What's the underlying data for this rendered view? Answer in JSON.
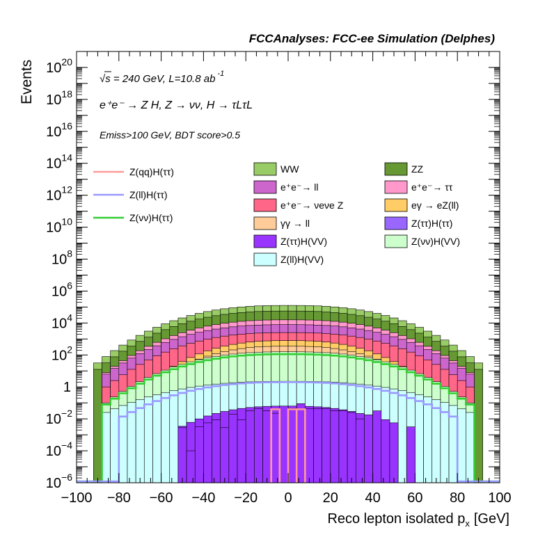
{
  "header": "FCCAnalyses: FCC-ee Simulation (Delphes)",
  "annotations": {
    "energy": "√s = 240 GeV, L=10.8 ab",
    "energy_sup": "-1",
    "process": "e⁺e⁻ → Z H, Z → νν, H → τLτL",
    "selection": "Emiss>100 GeV, BDT score>0.5"
  },
  "colors": {
    "WW": "#99cc66",
    "ZZ": "#669933",
    "ee_ll": "#cc66cc",
    "ee_tautau": "#ff99cc",
    "ee_nunuZ": "#ff6688",
    "egamma": "#ffcc66",
    "gammagamma": "#ffcc99",
    "Ztautau_Htautau": "#9966ff",
    "Ztautau_HVV": "#9933ff",
    "Znunu_HVV": "#ccffcc",
    "Zll_HVV": "#ccffff",
    "sig_qq": "#ff9999",
    "sig_ll": "#9999ff",
    "sig_nunu": "#33cc33"
  },
  "chart_data": {
    "type": "histogram",
    "title": "",
    "xlabel": "Reco lepton isolated p",
    "xlabel_sub": "x",
    "xlabel_unit": "[GeV]",
    "ylabel": "Events",
    "xlim": [
      -100,
      100
    ],
    "ylim": [
      1e-06,
      1e+21
    ],
    "log_y": true,
    "bin_width": 4,
    "x_ticks": [
      "−100",
      "−80",
      "−60",
      "−40",
      "−20",
      "0",
      "20",
      "40",
      "60",
      "80",
      "100"
    ],
    "y_ticks": [
      {
        "base": "10",
        "exp": "20"
      },
      {
        "base": "10",
        "exp": "18"
      },
      {
        "base": "10",
        "exp": "16"
      },
      {
        "base": "10",
        "exp": "14"
      },
      {
        "base": "10",
        "exp": "12"
      },
      {
        "base": "10",
        "exp": "10"
      },
      {
        "base": "10",
        "exp": "8"
      },
      {
        "base": "10",
        "exp": "6"
      },
      {
        "base": "10",
        "exp": "4"
      },
      {
        "base": "10",
        "exp": "2"
      },
      {
        "base": "1",
        "exp": ""
      },
      {
        "base": "10",
        "exp": "−2"
      },
      {
        "base": "10",
        "exp": "−4"
      },
      {
        "base": "10",
        "exp": "−6"
      }
    ],
    "stack_note": "values are cumulative stacked totals (log10 of events), drawn back-to-front",
    "stack": [
      {
        "name": "WW",
        "color_key": "WW",
        "lo": -90,
        "hi": 90,
        "peak": 5.1,
        "edge": 1.5
      },
      {
        "name": "ZZ",
        "color_key": "ZZ",
        "lo": -90,
        "hi": 90,
        "peak": 4.75,
        "edge": 1.1
      },
      {
        "name": "e⁺e⁻→ ττ",
        "color_key": "ee_tautau",
        "lo": -86,
        "hi": 86,
        "peak": 4.2,
        "edge": 0.9
      },
      {
        "name": "e⁺e⁻→ ll",
        "color_key": "ee_ll",
        "lo": -86,
        "hi": 86,
        "peak": 3.9,
        "edge": 0.8
      },
      {
        "name": "e⁺e⁻→ νeνe Z",
        "color_key": "ee_nunuZ",
        "lo": -86,
        "hi": 86,
        "peak": 3.4,
        "edge": 0.0
      },
      {
        "name": "eγ → eZ(ll)",
        "color_key": "egamma",
        "lo": -60,
        "hi": 62,
        "peak": 2.9,
        "edge": 0.6
      },
      {
        "name": "γγ → ll",
        "color_key": "gammagamma",
        "lo": -60,
        "hi": 60,
        "peak": 2.55,
        "edge": 0.5
      },
      {
        "name": "Z(νν)H(VV)",
        "color_key": "Znunu_HVV",
        "lo": -86,
        "hi": 86,
        "peak": 2.2,
        "edge": -1.0
      },
      {
        "name": "Z(ll)H(VV)",
        "color_key": "Zll_HVV",
        "lo": -86,
        "hi": 86,
        "peak": 0.35,
        "edge": -1.6
      },
      {
        "name": "Z(ττ)H(VV)",
        "color_key": "Ztautau_HVV",
        "lo": -52,
        "hi": 52,
        "peak": -1.2,
        "edge": -2.6
      }
    ],
    "purple_bins": [
      {
        "x": -52,
        "v": -2.55
      },
      {
        "x": -48,
        "v": -4.0
      },
      {
        "x": -44,
        "v": -2.5
      },
      {
        "x": -40,
        "v": -2.25
      },
      {
        "x": -36,
        "v": -2.05
      },
      {
        "x": -32,
        "v": -2.55
      },
      {
        "x": -28,
        "v": -1.7
      },
      {
        "x": -24,
        "v": -2.05
      },
      {
        "x": -20,
        "v": -1.5
      },
      {
        "x": -16,
        "v": -1.35
      },
      {
        "x": -12,
        "v": -1.5
      },
      {
        "x": -8,
        "v": -1.65
      },
      {
        "x": -4,
        "v": -1.2
      },
      {
        "x": 0,
        "v": -1.35
      },
      {
        "x": 4,
        "v": -1.05
      },
      {
        "x": 8,
        "v": -1.35
      },
      {
        "x": 12,
        "v": -1.35
      },
      {
        "x": 16,
        "v": -1.35
      },
      {
        "x": 20,
        "v": -1.5
      },
      {
        "x": 24,
        "v": -1.5
      },
      {
        "x": 28,
        "v": -1.6
      },
      {
        "x": 32,
        "v": -2.0
      },
      {
        "x": 36,
        "v": -1.75
      },
      {
        "x": 40,
        "v": -1.5
      },
      {
        "x": 44,
        "v": -2.05
      },
      {
        "x": 48,
        "v": -2.25
      },
      {
        "x": 56,
        "v": -2.5
      }
    ],
    "lines": [
      {
        "name": "Z(νν)H(ττ)",
        "color_key": "sig_nunu",
        "lo": -88,
        "hi": 88,
        "peak": 2.05,
        "edge": -1.3
      },
      {
        "name": "Z(ll)H(ττ)",
        "color_key": "sig_ll",
        "lo": -80,
        "hi": 80,
        "peak": 0.3,
        "edge": -2.0
      },
      {
        "name": "Z(qq)H(ττ)",
        "color_key": "sig_qq",
        "spikes": [
          [
            -8,
            -4
          ],
          [
            0,
            4
          ],
          [
            4,
            8
          ]
        ],
        "level": -1.4
      }
    ],
    "legend_left": [
      {
        "label": "Z(qq)H(ττ)",
        "color_key": "sig_qq"
      },
      {
        "label": "Z(ll)H(ττ)",
        "color_key": "sig_ll"
      },
      {
        "label": "Z(νν)H(ττ)",
        "color_key": "sig_nunu"
      }
    ],
    "legend_right": [
      {
        "label": "WW",
        "color_key": "WW"
      },
      {
        "label": "ZZ",
        "color_key": "ZZ"
      },
      {
        "label": "e⁺e⁻→ ll",
        "color_key": "ee_ll"
      },
      {
        "label": "e⁺e⁻→ ττ",
        "color_key": "ee_tautau"
      },
      {
        "label": "e⁺e⁻→ νeνe Z",
        "color_key": "ee_nunuZ"
      },
      {
        "label": "eγ → eZ(ll)",
        "color_key": "egamma"
      },
      {
        "label": "γγ → ll",
        "color_key": "gammagamma"
      },
      {
        "label": "Z(ττ)H(ττ)",
        "color_key": "Ztautau_Htautau"
      },
      {
        "label": "Z(ττ)H(VV)",
        "color_key": "Ztautau_HVV"
      },
      {
        "label": "Z(νν)H(VV)",
        "color_key": "Znunu_HVV"
      },
      {
        "label": "Z(ll)H(VV)",
        "color_key": "Zll_HVV"
      }
    ]
  }
}
